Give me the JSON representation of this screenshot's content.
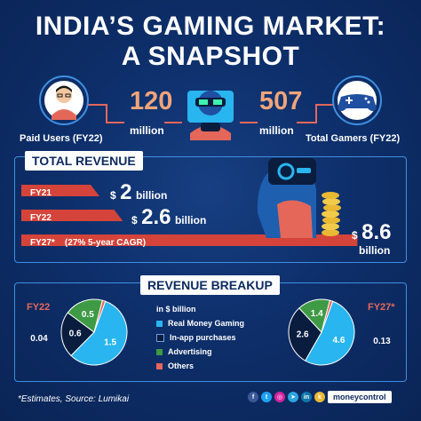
{
  "header": {
    "line1": "INDIA’S GAMING MARKET:",
    "line2": "A SNAPSHOT"
  },
  "stats": {
    "paid_users": {
      "value": "120",
      "unit": "million",
      "label": "Paid Users (FY22)"
    },
    "total_gamers": {
      "value": "507",
      "unit": "million",
      "label": "Total Gamers (FY22)"
    }
  },
  "total_revenue": {
    "badge": "TOTAL REVENUE",
    "currency": "$",
    "unit": "billion",
    "bars": [
      {
        "label": "FY21",
        "value": 2,
        "display": "2"
      },
      {
        "label": "FY22",
        "value": 2.6,
        "display": "2.6"
      },
      {
        "label": "FY27*",
        "note": "(27% 5-year CAGR)",
        "value": 8.6,
        "display": "8.6"
      }
    ]
  },
  "breakup": {
    "badge": "REVENUE BREAKUP",
    "legend_title": "in $ billion",
    "legend": [
      {
        "label": "Real Money Gaming",
        "color": "#29b5ef"
      },
      {
        "label": "In-app purchases",
        "color": "#0a1d3f"
      },
      {
        "label": "Advertising",
        "color": "#3f9a46"
      },
      {
        "label": "Others",
        "color": "#e4675a"
      }
    ]
  },
  "chart_data": [
    {
      "type": "bar",
      "title": "TOTAL REVENUE",
      "categories": [
        "FY21",
        "FY22",
        "FY27*"
      ],
      "values": [
        2,
        2.6,
        8.6
      ],
      "ylabel": "$ billion"
    },
    {
      "type": "pie",
      "title": "FY22",
      "labels": [
        "Real Money Gaming",
        "In-app purchases",
        "Advertising",
        "Others"
      ],
      "values": [
        1.5,
        0.6,
        0.5,
        0.04
      ]
    },
    {
      "type": "pie",
      "title": "FY27*",
      "labels": [
        "Real Money Gaming",
        "In-app purchases",
        "Advertising",
        "Others"
      ],
      "values": [
        4.6,
        2.6,
        1.4,
        0.13
      ]
    }
  ],
  "footer": {
    "note": "*Estimates, Source: Lumikai",
    "brand": "moneycontrol"
  }
}
